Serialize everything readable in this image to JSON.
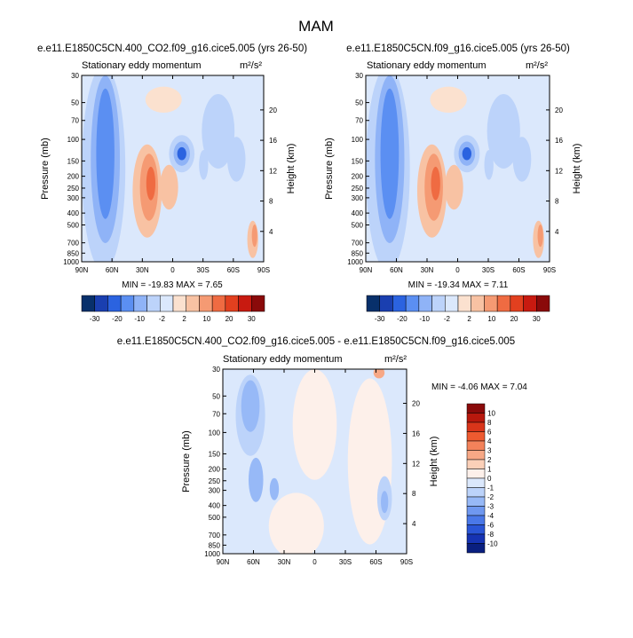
{
  "figure": {
    "title": "MAM"
  },
  "panels": [
    {
      "title": "e.e11.E1850C5CN.400_CO2.f09_g16.cice5.005 (yrs 26-50)",
      "left_label": "Stationary eddy momentum",
      "units": "m²/s²",
      "stats": "MIN = -19.83   MAX =   7.65"
    },
    {
      "title": "e.e11.E1850C5CN.f09_g16.cice5.005 (yrs 26-50)",
      "left_label": "Stationary eddy momentum",
      "units": "m²/s²",
      "stats": "MIN = -19.34   MAX =   7.11"
    },
    {
      "title": "e.e11.E1850C5CN.400_CO2.f09_g16.cice5.005 - e.e11.E1850C5CN.f09_g16.cice5.005",
      "left_label": "Stationary eddy momentum",
      "units": "m²/s²",
      "stats": "MIN =  -4.06   MAX =   7.04"
    }
  ],
  "chart_data": [
    {
      "type": "heatmap",
      "title": "e.e11.E1850C5CN.400_CO2.f09_g16.cice5.005 (yrs 26-50)",
      "subtitle": "Stationary eddy momentum",
      "units": "m²/s²",
      "xlabel": "",
      "ylabel": "Pressure (mb)",
      "ylabel_right": "Height (km)",
      "x_ticks": [
        "90N",
        "60N",
        "30N",
        "0",
        "30S",
        "60S",
        "90S"
      ],
      "y_ticks": [
        30,
        50,
        70,
        100,
        150,
        200,
        250,
        300,
        400,
        500,
        700,
        850,
        1000
      ],
      "y_right_ticks": [
        4,
        8,
        12,
        16,
        20
      ],
      "y_scale": "log",
      "min": -19.83,
      "max": 7.65,
      "colorbar_levels": [
        -30,
        -20,
        -10,
        -2,
        2,
        10,
        20,
        30
      ],
      "colorbar_orientation": "horizontal"
    },
    {
      "type": "heatmap",
      "title": "e.e11.E1850C5CN.f09_g16.cice5.005 (yrs 26-50)",
      "subtitle": "Stationary eddy momentum",
      "units": "m²/s²",
      "xlabel": "",
      "ylabel": "Pressure (mb)",
      "ylabel_right": "Height (km)",
      "x_ticks": [
        "90N",
        "60N",
        "30N",
        "0",
        "30S",
        "60S",
        "90S"
      ],
      "y_ticks": [
        30,
        50,
        70,
        100,
        150,
        200,
        250,
        300,
        400,
        500,
        700,
        850,
        1000
      ],
      "y_right_ticks": [
        4,
        8,
        12,
        16,
        20
      ],
      "y_scale": "log",
      "min": -19.34,
      "max": 7.11,
      "colorbar_levels": [
        -30,
        -20,
        -10,
        -2,
        2,
        10,
        20,
        30
      ],
      "colorbar_orientation": "horizontal"
    },
    {
      "type": "heatmap",
      "title": "e.e11.E1850C5CN.400_CO2.f09_g16.cice5.005 - e.e11.E1850C5CN.f09_g16.cice5.005",
      "subtitle": "Stationary eddy momentum",
      "units": "m²/s²",
      "xlabel": "",
      "ylabel": "Pressure (mb)",
      "ylabel_right": "Height (km)",
      "x_ticks": [
        "90N",
        "60N",
        "30N",
        "0",
        "30S",
        "60S",
        "90S"
      ],
      "y_ticks": [
        30,
        50,
        70,
        100,
        150,
        200,
        250,
        300,
        400,
        500,
        700,
        850,
        1000
      ],
      "y_right_ticks": [
        4,
        8,
        12,
        16,
        20
      ],
      "y_scale": "log",
      "min": -4.06,
      "max": 7.04,
      "colorbar_levels": [
        10,
        8,
        6,
        4,
        3,
        2,
        1,
        0,
        -1,
        -2,
        -3,
        -4,
        -6,
        -8,
        -10
      ],
      "colorbar_orientation": "vertical"
    }
  ],
  "colorbars": {
    "main_colors": [
      "#08306b",
      "#1a3fb0",
      "#2b63e0",
      "#5b8ff2",
      "#8fb3f7",
      "#bcd3fa",
      "#dbe8fc",
      "#fbe1cf",
      "#f8c2a3",
      "#f59a73",
      "#ef6b42",
      "#e2401f",
      "#c81a10",
      "#8a0a0a"
    ],
    "diff_colors": [
      "#8a0a0a",
      "#b8180d",
      "#d9351a",
      "#ee5a30",
      "#f3825a",
      "#f7a886",
      "#fbd0b8",
      "#fdf0ea",
      "#dbe8fc",
      "#bcd3fa",
      "#97b9f7",
      "#6f98f0",
      "#4a78e8",
      "#2a55d6",
      "#1633b3",
      "#0a1f80"
    ]
  }
}
